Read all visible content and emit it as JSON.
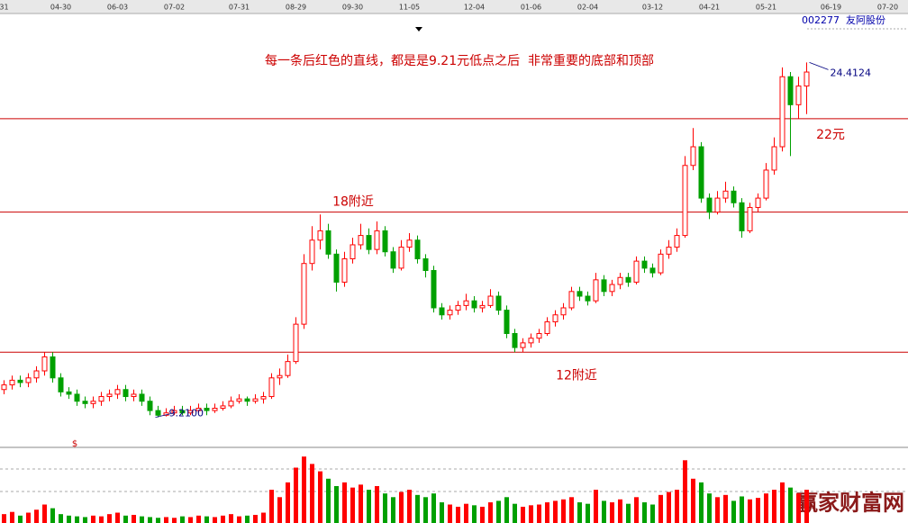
{
  "chart_data": {
    "type": "candlestick",
    "title": "002277  友阿股份",
    "annotation": "每一条后红色的直线，都是是9.21元低点之后  非常重要的底部和顶部",
    "high_label": "24.4124",
    "low_label": "9.2100",
    "marker": "$",
    "watermark": "赢家财富网",
    "up_color": "#ff0000",
    "down_color": "#00a000",
    "line_color": "#cc0000",
    "ylim": [
      8.0,
      26.7
    ],
    "volume_ylim": [
      0,
      100
    ],
    "lines": [
      {
        "value": 12,
        "label": "12附近"
      },
      {
        "value": 18,
        "label": "18附近"
      },
      {
        "value": 22,
        "label": "22元"
      }
    ],
    "categories": [
      "31",
      null,
      null,
      null,
      null,
      null,
      null,
      "04-30",
      null,
      null,
      null,
      null,
      null,
      null,
      "06-03",
      null,
      null,
      null,
      null,
      null,
      null,
      "07-02",
      null,
      null,
      null,
      null,
      null,
      null,
      null,
      "07-31",
      null,
      null,
      null,
      null,
      null,
      null,
      "08-29",
      null,
      null,
      null,
      null,
      null,
      null,
      "09-30",
      null,
      null,
      null,
      null,
      null,
      null,
      "11-05",
      null,
      null,
      null,
      null,
      null,
      null,
      null,
      "12-04",
      null,
      null,
      null,
      null,
      null,
      null,
      "01-06",
      null,
      null,
      null,
      null,
      null,
      null,
      "02-04",
      null,
      null,
      null,
      null,
      null,
      null,
      null,
      "03-12",
      null,
      null,
      null,
      null,
      null,
      null,
      "04-21",
      null,
      null,
      null,
      null,
      null,
      null,
      "05-21",
      null,
      null,
      null,
      null,
      null,
      null,
      null,
      "06-19",
      null,
      null,
      null,
      null,
      null,
      null,
      "07-20",
      null,
      null
    ],
    "candles": [
      [
        10.4,
        10.8,
        10.2,
        10.6
      ],
      [
        10.6,
        11.0,
        10.4,
        10.8
      ],
      [
        10.8,
        11.0,
        10.5,
        10.7
      ],
      [
        10.7,
        11.1,
        10.5,
        10.9
      ],
      [
        10.9,
        11.4,
        10.7,
        11.2
      ],
      [
        11.2,
        12.0,
        11.0,
        11.8
      ],
      [
        11.8,
        12.0,
        10.7,
        10.9
      ],
      [
        10.9,
        11.1,
        10.1,
        10.3
      ],
      [
        10.3,
        10.5,
        10.0,
        10.2
      ],
      [
        10.2,
        10.4,
        9.7,
        9.9
      ],
      [
        9.9,
        10.1,
        9.6,
        9.8
      ],
      [
        9.8,
        10.1,
        9.6,
        9.9
      ],
      [
        9.9,
        10.3,
        9.7,
        10.1
      ],
      [
        10.1,
        10.4,
        9.9,
        10.2
      ],
      [
        10.2,
        10.6,
        10.0,
        10.4
      ],
      [
        10.4,
        10.6,
        9.9,
        10.1
      ],
      [
        10.1,
        10.4,
        9.9,
        10.2
      ],
      [
        10.2,
        10.4,
        9.7,
        9.9
      ],
      [
        9.9,
        10.1,
        9.3,
        9.5
      ],
      [
        9.5,
        9.7,
        9.21,
        9.3
      ],
      [
        9.3,
        9.6,
        9.25,
        9.4
      ],
      [
        9.4,
        9.7,
        9.3,
        9.5
      ],
      [
        9.5,
        9.7,
        9.3,
        9.4
      ],
      [
        9.4,
        9.7,
        9.3,
        9.5
      ],
      [
        9.5,
        9.8,
        9.4,
        9.6
      ],
      [
        9.6,
        9.8,
        9.3,
        9.5
      ],
      [
        9.5,
        9.8,
        9.4,
        9.6
      ],
      [
        9.6,
        9.9,
        9.5,
        9.7
      ],
      [
        9.7,
        10.1,
        9.6,
        9.9
      ],
      [
        9.9,
        10.2,
        9.8,
        10.0
      ],
      [
        10.0,
        10.1,
        9.7,
        9.9
      ],
      [
        9.9,
        10.2,
        9.8,
        10.0
      ],
      [
        10.0,
        10.3,
        9.8,
        10.1
      ],
      [
        10.1,
        11.1,
        10.0,
        10.9
      ],
      [
        10.9,
        11.3,
        10.6,
        11.0
      ],
      [
        11.0,
        11.9,
        10.9,
        11.6
      ],
      [
        11.6,
        13.5,
        11.5,
        13.2
      ],
      [
        13.2,
        16.2,
        13.0,
        15.8
      ],
      [
        15.8,
        17.4,
        15.5,
        16.8
      ],
      [
        16.8,
        17.9,
        16.4,
        17.2
      ],
      [
        17.2,
        17.5,
        16.0,
        16.2
      ],
      [
        16.2,
        16.4,
        14.6,
        15.0
      ],
      [
        15.0,
        16.3,
        14.8,
        16.0
      ],
      [
        16.0,
        16.9,
        15.8,
        16.6
      ],
      [
        16.6,
        17.5,
        16.4,
        17.0
      ],
      [
        17.0,
        17.3,
        16.2,
        16.4
      ],
      [
        16.4,
        17.6,
        16.2,
        17.2
      ],
      [
        17.2,
        17.4,
        16.1,
        16.3
      ],
      [
        16.3,
        16.5,
        15.4,
        15.6
      ],
      [
        15.6,
        16.8,
        15.5,
        16.5
      ],
      [
        16.5,
        17.1,
        16.3,
        16.8
      ],
      [
        16.8,
        17.0,
        15.8,
        16.0
      ],
      [
        16.0,
        16.2,
        15.2,
        15.5
      ],
      [
        15.5,
        15.7,
        13.7,
        13.9
      ],
      [
        13.9,
        14.1,
        13.4,
        13.6
      ],
      [
        13.6,
        14.0,
        13.4,
        13.8
      ],
      [
        13.8,
        14.2,
        13.6,
        14.0
      ],
      [
        14.0,
        14.5,
        13.8,
        14.2
      ],
      [
        14.2,
        14.4,
        13.7,
        13.9
      ],
      [
        13.9,
        14.2,
        13.7,
        14.0
      ],
      [
        14.0,
        14.7,
        13.9,
        14.4
      ],
      [
        14.4,
        14.6,
        13.6,
        13.8
      ],
      [
        13.8,
        14.0,
        12.6,
        12.8
      ],
      [
        12.8,
        13.0,
        12.0,
        12.2
      ],
      [
        12.2,
        12.6,
        12.0,
        12.4
      ],
      [
        12.4,
        12.8,
        12.2,
        12.6
      ],
      [
        12.6,
        13.0,
        12.4,
        12.8
      ],
      [
        12.8,
        13.5,
        12.7,
        13.3
      ],
      [
        13.3,
        13.8,
        13.1,
        13.6
      ],
      [
        13.6,
        14.1,
        13.4,
        13.9
      ],
      [
        13.9,
        14.8,
        13.8,
        14.6
      ],
      [
        14.6,
        14.8,
        14.2,
        14.4
      ],
      [
        14.4,
        14.6,
        14.0,
        14.2
      ],
      [
        14.2,
        15.4,
        14.1,
        15.1
      ],
      [
        15.1,
        15.3,
        14.4,
        14.6
      ],
      [
        14.6,
        15.1,
        14.4,
        14.9
      ],
      [
        14.9,
        15.4,
        14.7,
        15.2
      ],
      [
        15.2,
        15.4,
        14.8,
        15.0
      ],
      [
        15.0,
        16.1,
        14.9,
        15.9
      ],
      [
        15.9,
        16.1,
        15.4,
        15.6
      ],
      [
        15.6,
        15.8,
        15.2,
        15.4
      ],
      [
        15.4,
        16.4,
        15.3,
        16.2
      ],
      [
        16.2,
        16.8,
        16.0,
        16.5
      ],
      [
        16.5,
        17.3,
        16.3,
        17.0
      ],
      [
        17.0,
        20.4,
        16.9,
        20.0
      ],
      [
        20.0,
        21.6,
        19.8,
        20.8
      ],
      [
        20.8,
        21.0,
        18.4,
        18.6
      ],
      [
        18.6,
        18.8,
        17.7,
        18.0
      ],
      [
        18.0,
        18.9,
        17.9,
        18.6
      ],
      [
        18.6,
        19.3,
        18.4,
        18.9
      ],
      [
        18.9,
        19.1,
        18.2,
        18.4
      ],
      [
        18.4,
        18.6,
        16.9,
        17.2
      ],
      [
        17.2,
        18.4,
        17.1,
        18.2
      ],
      [
        18.2,
        18.8,
        18.0,
        18.6
      ],
      [
        18.6,
        20.1,
        18.5,
        19.8
      ],
      [
        19.8,
        21.2,
        19.6,
        20.8
      ],
      [
        20.8,
        24.2,
        20.6,
        23.8
      ],
      [
        23.8,
        24.0,
        20.4,
        22.6
      ],
      [
        22.6,
        23.8,
        22.0,
        23.4
      ],
      [
        23.4,
        24.4124,
        22.2,
        24.0
      ],
      null,
      null,
      null,
      null,
      null,
      null,
      null,
      null,
      null,
      null,
      null,
      null
    ],
    "volume": [
      12,
      15,
      10,
      14,
      18,
      25,
      20,
      12,
      10,
      9,
      8,
      10,
      9,
      12,
      14,
      10,
      11,
      9,
      8,
      7,
      8,
      7,
      9,
      8,
      10,
      9,
      8,
      10,
      12,
      9,
      10,
      11,
      14,
      45,
      35,
      55,
      75,
      90,
      80,
      70,
      60,
      50,
      55,
      48,
      52,
      45,
      50,
      40,
      35,
      42,
      45,
      38,
      35,
      40,
      28,
      25,
      22,
      26,
      24,
      22,
      28,
      30,
      35,
      26,
      22,
      24,
      25,
      28,
      30,
      32,
      35,
      28,
      26,
      45,
      30,
      28,
      32,
      26,
      35,
      28,
      25,
      38,
      42,
      45,
      85,
      60,
      55,
      40,
      35,
      38,
      30,
      36,
      32,
      34,
      40,
      45,
      55,
      48,
      40,
      45,
      null,
      null,
      null,
      null,
      null,
      null,
      null,
      null,
      null,
      null,
      null,
      null
    ]
  }
}
